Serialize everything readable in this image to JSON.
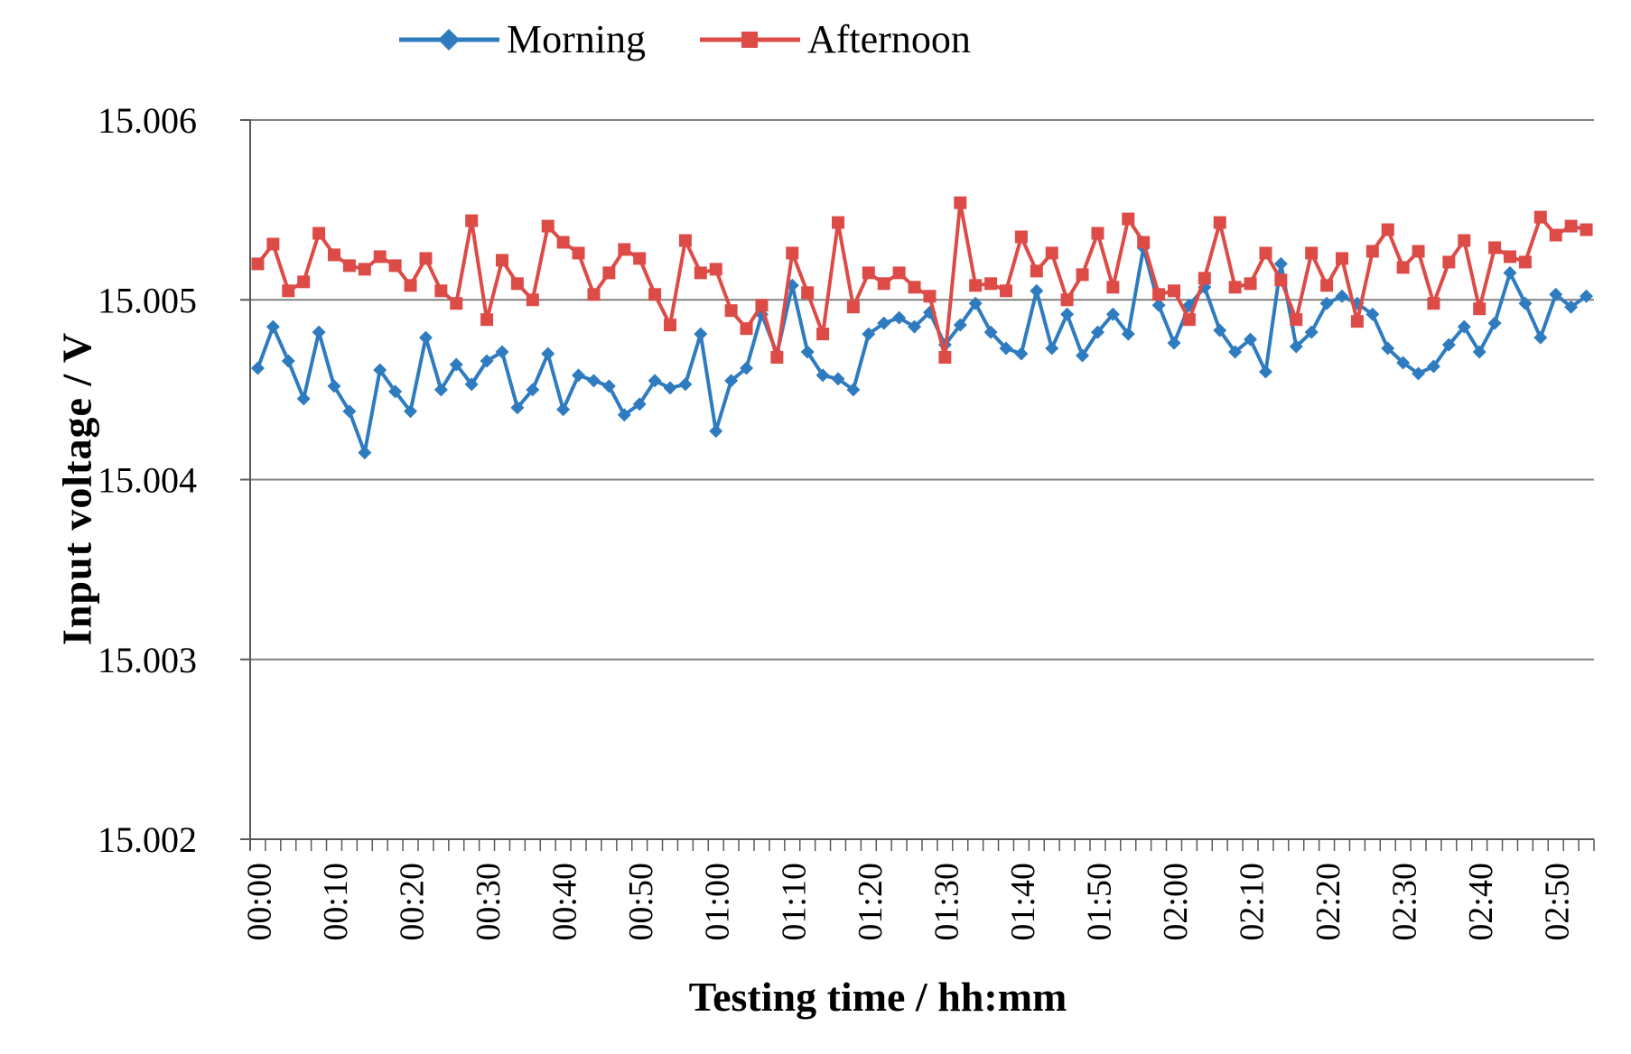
{
  "legend": {
    "items": [
      {
        "label": "Morning",
        "marker": "diamond-marker-icon"
      },
      {
        "label": "Afternoon",
        "marker": "square-marker-icon"
      }
    ]
  },
  "y_axis": {
    "title": "Input voltage / V",
    "tick_labels": [
      "15.006",
      "15.005",
      "15.004",
      "15.003",
      "15.002"
    ]
  },
  "x_axis": {
    "title": "Testing time / hh:mm",
    "tick_labels": [
      "00:00",
      "00:10",
      "00:20",
      "00:30",
      "00:40",
      "00:50",
      "01:00",
      "01:10",
      "01:20",
      "01:30",
      "01:40",
      "01:50",
      "02:00",
      "02:10",
      "02:20",
      "02:30",
      "02:40",
      "02:50"
    ]
  },
  "chart_data": {
    "type": "line",
    "title": "",
    "xlabel": "Testing time / hh:mm",
    "ylabel": "Input voltage / V",
    "ylim": [
      15.002,
      15.006
    ],
    "y_ticks": [
      15.006,
      15.005,
      15.004,
      15.003,
      15.002
    ],
    "grid": "horizontal",
    "legend_position": "top",
    "x_label_every_n_points": 5,
    "colors": {
      "morning": "#2E7CBF",
      "afternoon": "#DD4B47",
      "gridline": "#808080",
      "axis": "#595959"
    },
    "x": [
      "00:00",
      "00:02",
      "00:04",
      "00:06",
      "00:08",
      "00:10",
      "00:12",
      "00:14",
      "00:16",
      "00:18",
      "00:20",
      "00:22",
      "00:24",
      "00:26",
      "00:28",
      "00:30",
      "00:32",
      "00:34",
      "00:36",
      "00:38",
      "00:40",
      "00:42",
      "00:44",
      "00:46",
      "00:48",
      "00:50",
      "00:52",
      "00:54",
      "00:56",
      "00:58",
      "01:00",
      "01:02",
      "01:04",
      "01:06",
      "01:08",
      "01:10",
      "01:12",
      "01:14",
      "01:16",
      "01:18",
      "01:20",
      "01:22",
      "01:24",
      "01:26",
      "01:28",
      "01:30",
      "01:32",
      "01:34",
      "01:36",
      "01:38",
      "01:40",
      "01:42",
      "01:44",
      "01:46",
      "01:48",
      "01:50",
      "01:52",
      "01:54",
      "01:56",
      "01:58",
      "02:00",
      "02:02",
      "02:04",
      "02:06",
      "02:08",
      "02:10",
      "02:12",
      "02:14",
      "02:16",
      "02:18",
      "02:20",
      "02:22",
      "02:24",
      "02:26",
      "02:28",
      "02:30",
      "02:32",
      "02:34",
      "02:36",
      "02:38",
      "02:40",
      "02:42",
      "02:44",
      "02:46",
      "02:48",
      "02:50",
      "02:52",
      "02:54"
    ],
    "series": [
      {
        "name": "Morning",
        "color": "#2E7CBF",
        "marker": "diamond",
        "values": [
          15.00462,
          15.00485,
          15.00466,
          15.00445,
          15.00482,
          15.00452,
          15.00438,
          15.00415,
          15.00461,
          15.00449,
          15.00438,
          15.00479,
          15.0045,
          15.00464,
          15.00453,
          15.00466,
          15.00471,
          15.0044,
          15.0045,
          15.0047,
          15.00439,
          15.00458,
          15.00455,
          15.00452,
          15.00436,
          15.00442,
          15.00455,
          15.00451,
          15.00453,
          15.00481,
          15.00427,
          15.00455,
          15.00462,
          15.00492,
          15.0047,
          15.00508,
          15.00471,
          15.00458,
          15.00456,
          15.0045,
          15.00481,
          15.00487,
          15.0049,
          15.00485,
          15.00493,
          15.00475,
          15.00486,
          15.00498,
          15.00482,
          15.00473,
          15.0047,
          15.00505,
          15.00473,
          15.00492,
          15.00469,
          15.00482,
          15.00492,
          15.00481,
          15.00529,
          15.00497,
          15.00476,
          15.00497,
          15.00507,
          15.00483,
          15.00471,
          15.00478,
          15.0046,
          15.0052,
          15.00474,
          15.00482,
          15.00498,
          15.00502,
          15.00498,
          15.00492,
          15.00473,
          15.00465,
          15.00459,
          15.00463,
          15.00475,
          15.00485,
          15.00471,
          15.00487,
          15.00515,
          15.00498,
          15.00479,
          15.00503,
          15.00496,
          15.00502
        ]
      },
      {
        "name": "Afternoon",
        "color": "#DD4B47",
        "marker": "square",
        "values": [
          15.0052,
          15.00531,
          15.00505,
          15.0051,
          15.00537,
          15.00525,
          15.00519,
          15.00517,
          15.00524,
          15.00519,
          15.00508,
          15.00523,
          15.00505,
          15.00498,
          15.00544,
          15.00489,
          15.00522,
          15.00509,
          15.005,
          15.00541,
          15.00532,
          15.00526,
          15.00503,
          15.00515,
          15.00528,
          15.00523,
          15.00503,
          15.00486,
          15.00533,
          15.00515,
          15.00517,
          15.00494,
          15.00484,
          15.00497,
          15.00468,
          15.00526,
          15.00504,
          15.00481,
          15.00543,
          15.00496,
          15.00515,
          15.00509,
          15.00515,
          15.00507,
          15.00502,
          15.00468,
          15.00554,
          15.00508,
          15.00509,
          15.00505,
          15.00535,
          15.00516,
          15.00526,
          15.005,
          15.00514,
          15.00537,
          15.00507,
          15.00545,
          15.00532,
          15.00503,
          15.00505,
          15.00489,
          15.00512,
          15.00543,
          15.00507,
          15.00509,
          15.00526,
          15.00511,
          15.00489,
          15.00526,
          15.00508,
          15.00523,
          15.00488,
          15.00527,
          15.00539,
          15.00518,
          15.00527,
          15.00498,
          15.00521,
          15.00533,
          15.00495,
          15.00529,
          15.00524,
          15.00521,
          15.00546,
          15.00536,
          15.00541,
          15.00539
        ]
      }
    ]
  }
}
